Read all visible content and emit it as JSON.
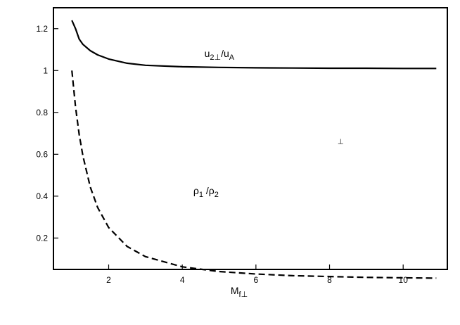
{
  "chart_data": {
    "type": "line",
    "title": "",
    "xlabel": {
      "base": "M",
      "sub": "f⊥"
    },
    "ylabel": "",
    "xlim": [
      0.5,
      11.2
    ],
    "ylim": [
      0.05,
      1.3
    ],
    "xticks": [
      2,
      4,
      6,
      8,
      10
    ],
    "yticks": [
      0.2,
      0.4,
      0.6,
      0.8,
      1,
      1.2
    ],
    "xtick_labels": [
      "2",
      "4",
      "6",
      "8",
      "10"
    ],
    "ytick_labels": [
      "0.2",
      "0.4",
      "0.6",
      "0.8",
      "1",
      "1.2"
    ],
    "grid": false,
    "stray_glyph": "⊥",
    "stray_glyph_pos": [
      8.3,
      0.65
    ],
    "series": [
      {
        "name": "u2⊥/uA",
        "label_parts": {
          "a": "u",
          "a_sub": "2⊥",
          "mid": "/u",
          "b_sub": "A"
        },
        "label_at": [
          4.6,
          1.065
        ],
        "style": "solid",
        "x": [
          1.0,
          1.1,
          1.2,
          1.3,
          1.5,
          1.7,
          2.0,
          2.5,
          3.0,
          4.0,
          5.0,
          6.0,
          7.0,
          8.0,
          9.0,
          10.0,
          10.9
        ],
        "y": [
          1.24,
          1.2,
          1.15,
          1.125,
          1.095,
          1.075,
          1.055,
          1.035,
          1.025,
          1.018,
          1.015,
          1.013,
          1.012,
          1.011,
          1.011,
          1.01,
          1.01
        ]
      },
      {
        "name": "ρ1/ρ2",
        "label_parts": {
          "a": "ρ",
          "a_sub": "1",
          "mid": " /ρ",
          "b_sub": "2"
        },
        "label_at": [
          4.3,
          0.41
        ],
        "style": "dashed",
        "x": [
          1.0,
          1.1,
          1.2,
          1.3,
          1.5,
          1.7,
          2.0,
          2.5,
          3.0,
          4.0,
          5.0,
          6.0,
          7.0,
          8.0,
          9.0,
          10.0,
          10.9
        ],
        "y": [
          1.0,
          0.826,
          0.694,
          0.592,
          0.444,
          0.346,
          0.25,
          0.16,
          0.111,
          0.0625,
          0.04,
          0.028,
          0.02,
          0.016,
          0.012,
          0.01,
          0.0084
        ]
      }
    ]
  }
}
